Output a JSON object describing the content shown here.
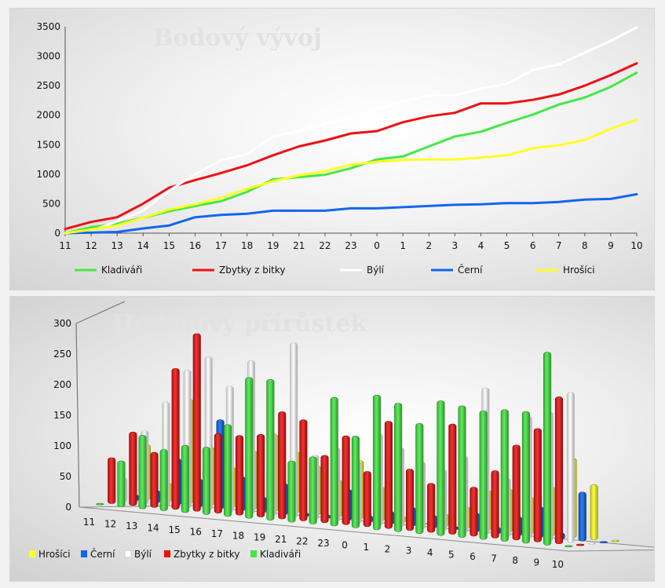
{
  "chart_data": [
    {
      "type": "line",
      "title": "Bodový vývoj",
      "x": [
        "11",
        "12",
        "13",
        "14",
        "15",
        "16",
        "17",
        "18",
        "19",
        "21",
        "22",
        "23",
        "0",
        "1",
        "2",
        "3",
        "4",
        "5",
        "6",
        "7",
        "8",
        "9",
        "10"
      ],
      "ylim": [
        0,
        3500
      ],
      "yticks": [
        0,
        500,
        1000,
        1500,
        2000,
        2500,
        3000,
        3500
      ],
      "grid": false,
      "legend_position": "bottom",
      "series": [
        {
          "name": "Kladiváři",
          "color": "#44e844",
          "values": [
            0,
            100,
            160,
            260,
            370,
            460,
            540,
            700,
            910,
            950,
            990,
            1100,
            1250,
            1300,
            1470,
            1640,
            1720,
            1870,
            2010,
            2180,
            2300,
            2480,
            2720
          ]
        },
        {
          "name": "Zbytky z bitky",
          "color": "#ee1111",
          "values": [
            70,
            190,
            270,
            500,
            770,
            900,
            1020,
            1150,
            1320,
            1470,
            1570,
            1690,
            1730,
            1880,
            1980,
            2040,
            2200,
            2200,
            2260,
            2350,
            2500,
            2680,
            2880
          ]
        },
        {
          "name": "Býlí",
          "color": "#ffffff",
          "values": [
            0,
            40,
            200,
            380,
            720,
            1000,
            1230,
            1340,
            1640,
            1730,
            1850,
            1960,
            2100,
            2230,
            2340,
            2340,
            2450,
            2530,
            2770,
            2860,
            3060,
            3260,
            3490
          ]
        },
        {
          "name": "Černí",
          "color": "#1166ee",
          "values": [
            0,
            10,
            20,
            80,
            130,
            270,
            310,
            330,
            380,
            380,
            380,
            420,
            420,
            440,
            460,
            480,
            490,
            510,
            510,
            530,
            570,
            580,
            660
          ]
        },
        {
          "name": "Hrošíci",
          "color": "#ffff22",
          "values": [
            0,
            60,
            130,
            260,
            400,
            490,
            600,
            750,
            880,
            980,
            1050,
            1160,
            1210,
            1240,
            1250,
            1250,
            1280,
            1320,
            1440,
            1490,
            1580,
            1770,
            1920
          ]
        }
      ]
    },
    {
      "type": "bar",
      "title": "Hodinový přírůstek",
      "categories": [
        "11",
        "12",
        "13",
        "14",
        "15",
        "16",
        "17",
        "18",
        "19",
        "21",
        "22",
        "23",
        "0",
        "1",
        "2",
        "3",
        "4",
        "5",
        "6",
        "7",
        "8",
        "9",
        "10"
      ],
      "ylim": [
        0,
        300
      ],
      "yticks": [
        0,
        50,
        100,
        150,
        200,
        250,
        300
      ],
      "legend_position": "bottom-left",
      "series": [
        {
          "name": "Hrošíci",
          "color": "#ffff22",
          "values": [
            90,
            30,
            170,
            95,
            65,
            95,
            125,
            100,
            80,
            60,
            95,
            55,
            10,
            0,
            20,
            35,
            65,
            70,
            60,
            80,
            130,
            90,
            0
          ]
        },
        {
          "name": "Černí",
          "color": "#1166ee",
          "values": [
            10,
            20,
            75,
            45,
            145,
            55,
            25,
            50,
            5,
            5,
            50,
            10,
            20,
            30,
            20,
            5,
            30,
            10,
            30,
            50,
            10,
            80,
            0
          ]
        },
        {
          "name": "Býlí",
          "color": "#ffffff",
          "values": [
            40,
            120,
            170,
            225,
            250,
            205,
            250,
            135,
            285,
            105,
            120,
            100,
            150,
            130,
            110,
            100,
            125,
            240,
            95,
            200,
            210,
            245,
            0
          ]
        },
        {
          "name": "Zbytky z bitky",
          "color": "#ee1111",
          "values": [
            75,
            120,
            90,
            230,
            290,
            130,
            130,
            135,
            175,
            165,
            110,
            145,
            90,
            175,
            100,
            80,
            180,
            80,
            110,
            155,
            185,
            240,
            0
          ]
        },
        {
          "name": "Kladiváři",
          "color": "#44e844",
          "values": [
            0,
            75,
            120,
            100,
            110,
            110,
            150,
            230,
            230,
            100,
            110,
            210,
            150,
            220,
            210,
            180,
            220,
            215,
            210,
            215,
            215,
            315,
            0
          ]
        }
      ]
    }
  ]
}
